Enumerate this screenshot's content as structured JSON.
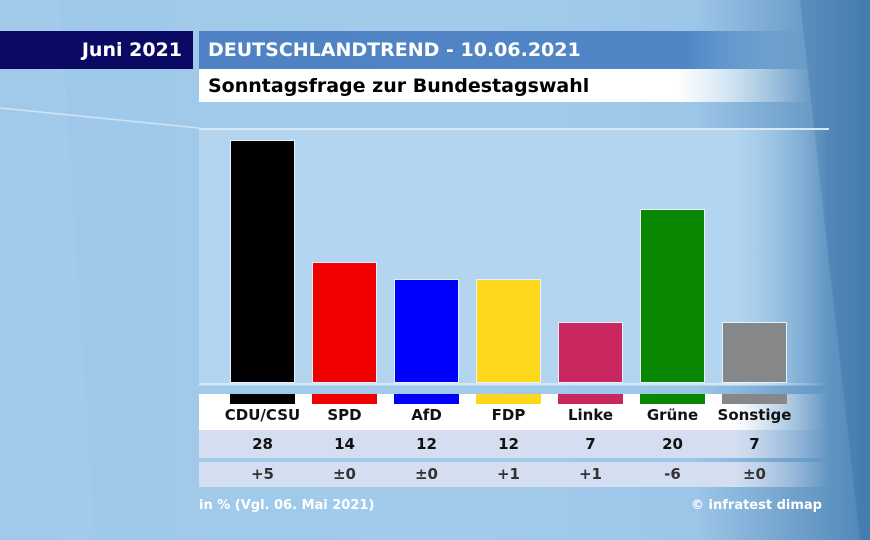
{
  "header": {
    "month_label": "Juni 2021",
    "title": "DEUTSCHLANDTREND - 10.06.2021",
    "subtitle": "Sonntagsfrage zur Bundestagswahl"
  },
  "footer": {
    "note": "in % (Vgl. 06. Mai 2021)",
    "source": "© infratest dimap"
  },
  "chart_data": {
    "type": "bar",
    "title": "Sonntagsfrage zur Bundestagswahl",
    "xlabel": "",
    "ylabel": "in %",
    "ylim": [
      0,
      28
    ],
    "grid": false,
    "categories": [
      "CDU/CSU",
      "SPD",
      "AfD",
      "FDP",
      "Linke",
      "Grüne",
      "Sonstige"
    ],
    "values": [
      28,
      14,
      12,
      12,
      7,
      20,
      7
    ],
    "value_labels": [
      "28",
      "14",
      "12",
      "12",
      "7",
      "20",
      "7"
    ],
    "changes": [
      "+5",
      "±0",
      "±0",
      "+1",
      "+1",
      "-6",
      "±0"
    ],
    "comparison": "06. Mai 2021",
    "colors": [
      "#000000",
      "#f20000",
      "#0000ff",
      "#fcd71c",
      "#c8275f",
      "#0a8700",
      "#858789"
    ]
  }
}
